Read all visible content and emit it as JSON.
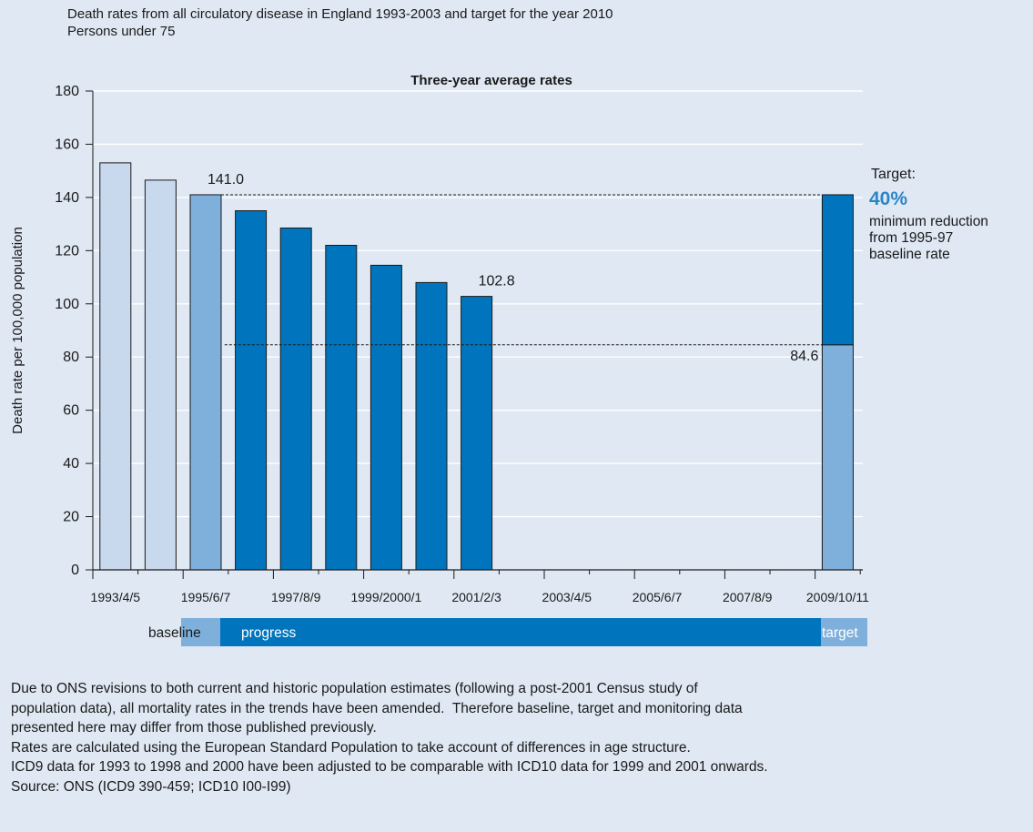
{
  "chart_data": {
    "type": "bar",
    "title": "Death rates from all circulatory disease in England 1993-2003 and target for the year 2010",
    "subtitle": "Persons under 75",
    "plot_heading": "Three-year average rates",
    "ylabel": "Death rate per 100,000 population",
    "ylim": [
      0,
      180
    ],
    "yticks": [
      0,
      20,
      40,
      60,
      80,
      100,
      120,
      140,
      160,
      180
    ],
    "grid": true,
    "x_slots": 17,
    "x_tick_labels": [
      {
        "slot": 1,
        "label": "1993/4/5"
      },
      {
        "slot": 3,
        "label": "1995/6/7"
      },
      {
        "slot": 5,
        "label": "1997/8/9"
      },
      {
        "slot": 7,
        "label": "1999/2000/1"
      },
      {
        "slot": 9,
        "label": "2001/2/3"
      },
      {
        "slot": 11,
        "label": "2003/4/5"
      },
      {
        "slot": 13,
        "label": "2005/6/7"
      },
      {
        "slot": 15,
        "label": "2007/8/9"
      },
      {
        "slot": 17,
        "label": "2009/10/11"
      }
    ],
    "bars": [
      {
        "slot": 1,
        "value": 153,
        "kind": "pre-baseline"
      },
      {
        "slot": 2,
        "value": 146.5,
        "kind": "pre-baseline"
      },
      {
        "slot": 3,
        "value": 141.0,
        "kind": "baseline"
      },
      {
        "slot": 4,
        "value": 135,
        "kind": "progress"
      },
      {
        "slot": 5,
        "value": 128.5,
        "kind": "progress"
      },
      {
        "slot": 6,
        "value": 122,
        "kind": "progress"
      },
      {
        "slot": 7,
        "value": 114.5,
        "kind": "progress"
      },
      {
        "slot": 8,
        "value": 108,
        "kind": "progress"
      },
      {
        "slot": 9,
        "value": 102.8,
        "kind": "progress"
      }
    ],
    "target_bar": {
      "slot": 17,
      "from": 84.6,
      "to": 141.0
    },
    "data_labels": [
      {
        "slot": 3,
        "value": 141.0,
        "text": "141.0"
      },
      {
        "slot": 9,
        "value": 102.8,
        "text": "102.8"
      }
    ],
    "reference_lines": [
      {
        "value": 141.0,
        "from_slot": 3
      },
      {
        "value": 84.6,
        "from_slot": 3.5,
        "label": "84.6"
      }
    ],
    "target_note": {
      "heading": "Target:",
      "percent": "40%",
      "lines": [
        "minimum reduction",
        "from 1995-97",
        "baseline rate"
      ]
    },
    "period_bar": {
      "baseline": "baseline",
      "progress": "progress",
      "target": "target"
    },
    "colors": {
      "pre_baseline": "#c8d9ee",
      "baseline": "#7fb0dc",
      "progress": "#0075be",
      "target_text": "#2a86c8"
    }
  },
  "footnotes": [
    "Due to ONS revisions to both current and historic population estimates (following a post-2001 Census study of",
    "population data), all mortality rates in the trends have been amended.  Therefore baseline, target and monitoring data",
    "presented here may differ from those published previously.",
    "Rates are calculated using the European Standard Population to take account of differences in age structure.",
    "ICD9 data for 1993 to 1998 and 2000 have been adjusted to be comparable with ICD10 data for 1999 and 2001 onwards.",
    "Source: ONS (ICD9 390-459; ICD10 I00-I99)"
  ]
}
